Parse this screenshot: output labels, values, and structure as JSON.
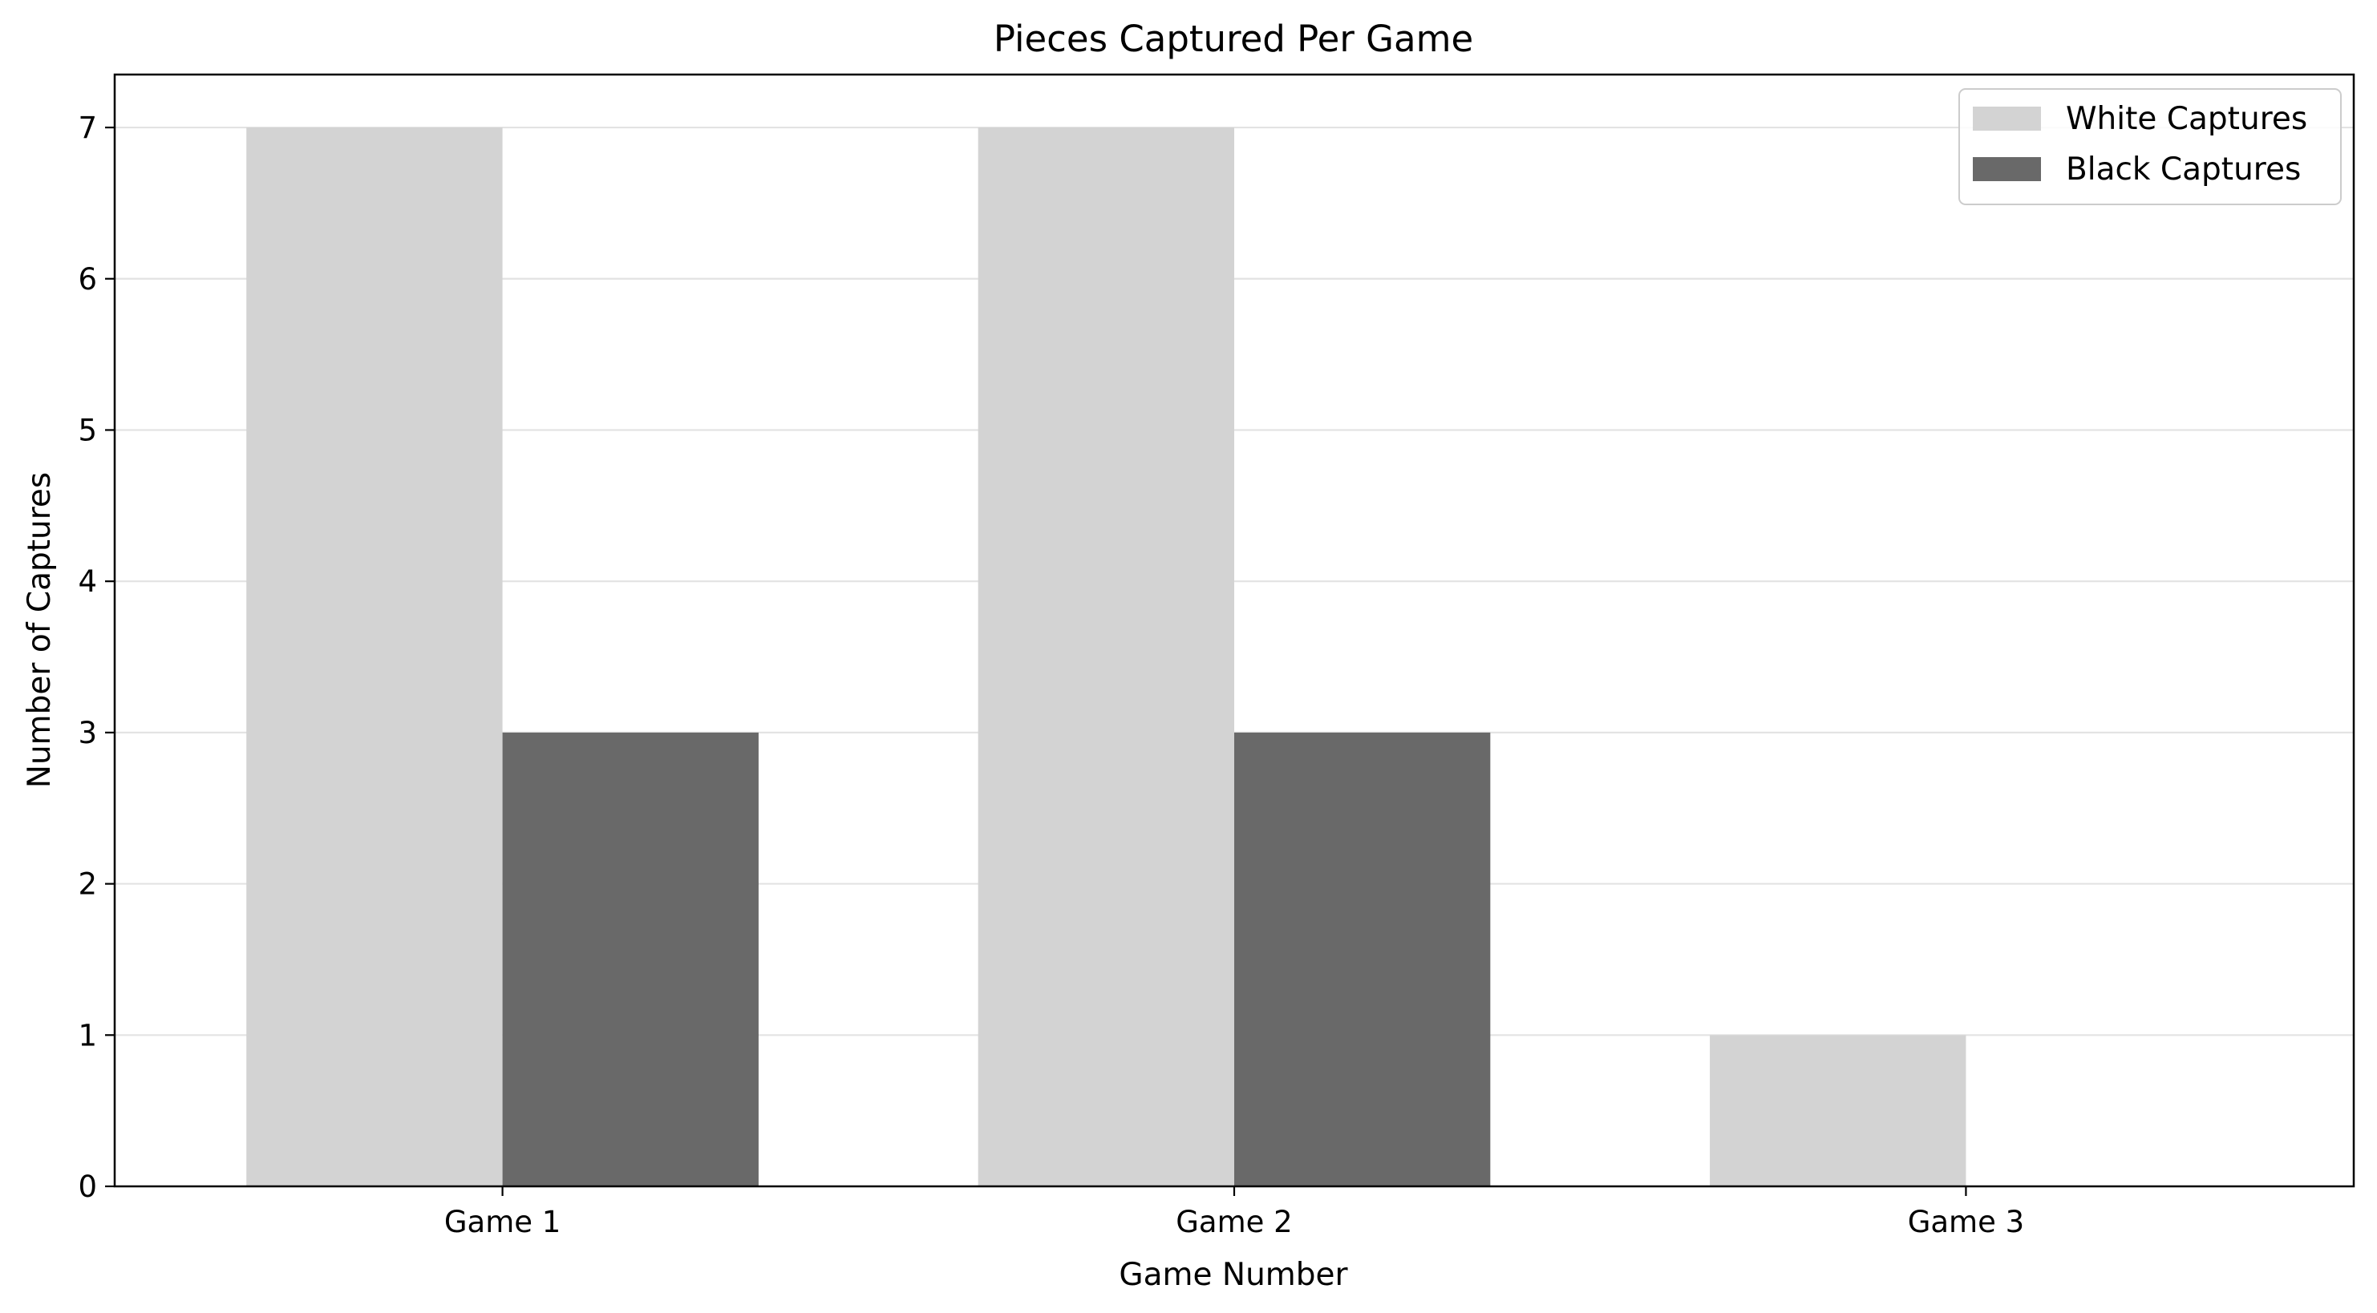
{
  "chart_data": {
    "type": "bar",
    "title": "Pieces Captured Per Game",
    "xlabel": "Game Number",
    "ylabel": "Number of Captures",
    "categories": [
      "Game 1",
      "Game 2",
      "Game 3"
    ],
    "series": [
      {
        "name": "White Captures",
        "values": [
          7,
          7,
          1
        ],
        "color": "#d3d3d3"
      },
      {
        "name": "Black Captures",
        "values": [
          3,
          3,
          0
        ],
        "color": "#696969"
      }
    ],
    "ylim": [
      0,
      7.35
    ],
    "yticks": [
      0,
      1,
      2,
      3,
      4,
      5,
      6,
      7
    ],
    "grid": "y",
    "legend": "upper-right"
  }
}
